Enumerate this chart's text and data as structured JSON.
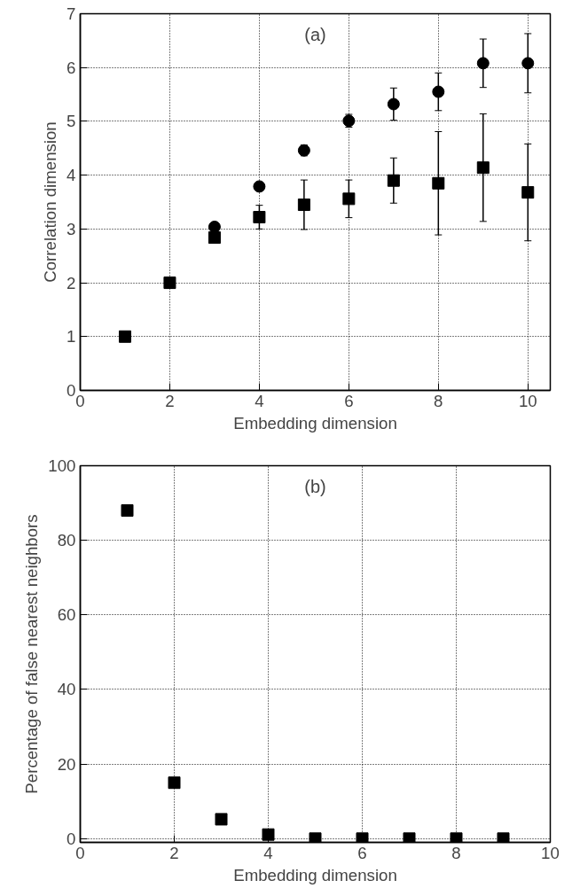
{
  "chart_data": [
    {
      "type": "scatter",
      "annotations": [
        "(a)"
      ],
      "xlabel": "Embedding dimension",
      "ylabel": "Correlation dimension",
      "x": [
        1,
        2,
        3,
        4,
        5,
        6,
        7,
        8,
        9,
        10
      ],
      "xlim": [
        0,
        10.5
      ],
      "xticks": [
        0,
        2,
        4,
        6,
        8,
        10
      ],
      "ylim": [
        0,
        7
      ],
      "yticks": [
        0,
        1,
        2,
        3,
        4,
        5,
        6,
        7
      ],
      "grid": true,
      "series": [
        {
          "color": "#000000",
          "marker": "circle",
          "values": [
            null,
            null,
            3.04,
            3.79,
            4.46,
            5.01,
            5.32,
            5.55,
            6.08,
            6.08
          ],
          "errors": [
            null,
            null,
            null,
            null,
            0.1,
            0.12,
            0.3,
            0.35,
            0.45,
            0.55
          ]
        },
        {
          "color": "#000000",
          "marker": "square",
          "values": [
            1.0,
            2.0,
            2.84,
            3.22,
            3.45,
            3.56,
            3.9,
            3.85,
            4.14,
            3.68
          ],
          "errors": [
            null,
            0.1,
            null,
            0.22,
            0.46,
            0.35,
            0.42,
            0.96,
            1.0,
            0.9
          ]
        }
      ]
    },
    {
      "type": "scatter",
      "annotations": [
        "(b)"
      ],
      "xlabel": "Embedding dimension",
      "ylabel": "Percentage of false nearest neighbors",
      "x": [
        1,
        2,
        3,
        4,
        5,
        6,
        7,
        8,
        9
      ],
      "xlim": [
        0,
        10
      ],
      "xticks": [
        0,
        2,
        4,
        6,
        8,
        10
      ],
      "ylim": [
        -1,
        100
      ],
      "yticks": [
        0,
        20,
        40,
        60,
        80,
        100
      ],
      "grid": true,
      "series": [
        {
          "color": "#000000",
          "marker": "square",
          "values": [
            88,
            15,
            5.2,
            1.1,
            0,
            0,
            0,
            0,
            0
          ]
        }
      ]
    }
  ]
}
